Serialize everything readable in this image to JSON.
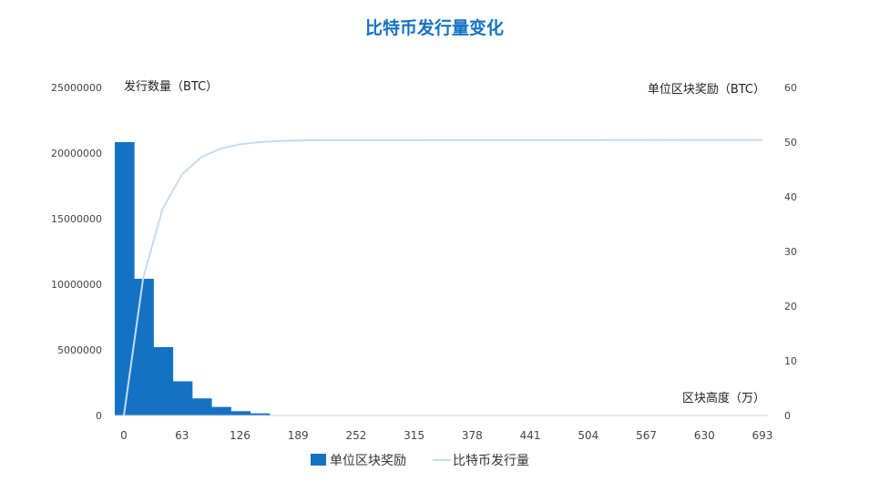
{
  "chart_data": {
    "type": "bar+line",
    "title": "比特币发行量变化",
    "left_axis_label": "发行数量（BTC）",
    "right_axis_label": "单位区块奖励（BTC）",
    "x_axis_label": "区块高度（万）",
    "left_ylim": [
      0,
      25000000
    ],
    "left_ticks": [
      "0",
      "5000000",
      "10000000",
      "15000000",
      "20000000",
      "25000000"
    ],
    "right_ylim": [
      0,
      60
    ],
    "right_ticks": [
      "0",
      "10",
      "20",
      "30",
      "40",
      "50",
      "60"
    ],
    "xlim": [
      0,
      693
    ],
    "x_ticks": [
      "0",
      "63",
      "126",
      "189",
      "252",
      "315",
      "378",
      "441",
      "504",
      "567",
      "630",
      "693"
    ],
    "legend_placement": "bottom-center",
    "series": [
      {
        "name": "单位区块奖励",
        "type": "bar",
        "axis": "right",
        "color": "#1472c4",
        "x_start": [
          0,
          21,
          42,
          63,
          84,
          105,
          126,
          147
        ],
        "width": 21,
        "values": [
          50,
          25,
          12.5,
          6.25,
          3.125,
          1.5625,
          0.78125,
          0.390625
        ]
      },
      {
        "name": "比特币发行量",
        "type": "line",
        "axis": "left",
        "color": "#c5dcee",
        "x": [
          0,
          21,
          42,
          63,
          84,
          105,
          126,
          147,
          168,
          189,
          210,
          693
        ],
        "values": [
          0,
          10500000,
          15750000,
          18375000,
          19687500,
          20343750,
          20671875,
          20835938,
          20917969,
          20958984,
          20979492,
          21000000
        ]
      }
    ]
  }
}
